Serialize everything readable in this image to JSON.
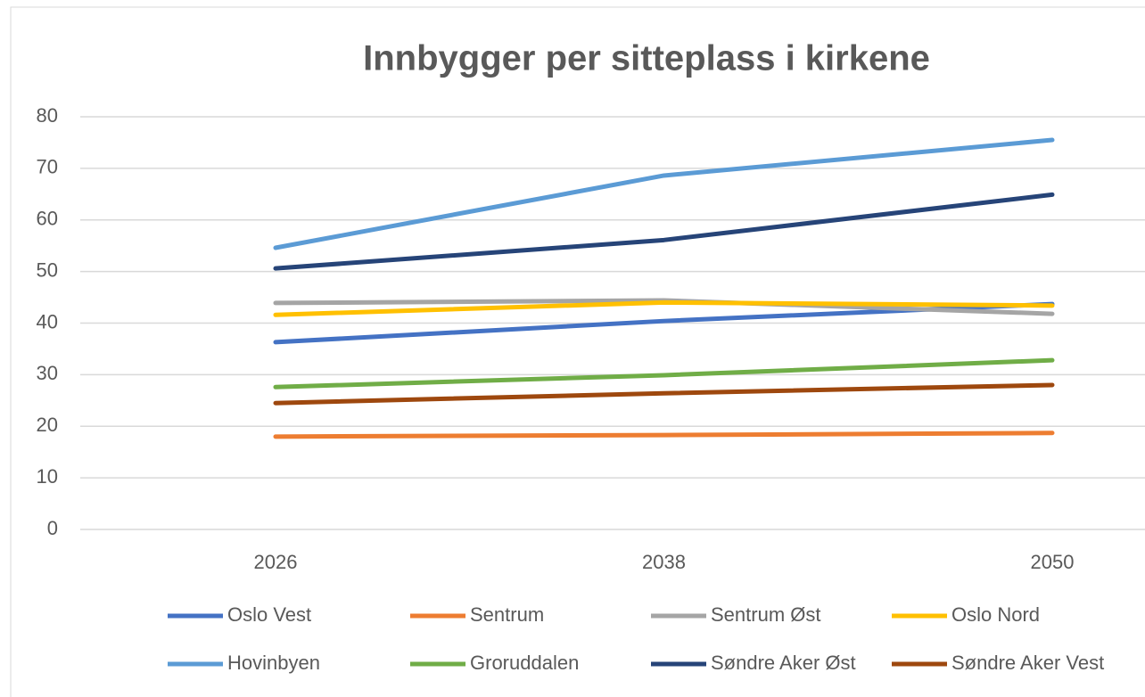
{
  "chart_data": {
    "type": "line",
    "title": "Innbygger per sitteplass i kirkene",
    "categories": [
      "2026",
      "2038",
      "2050"
    ],
    "series": [
      {
        "name": "Oslo Vest",
        "color": "#4472c4",
        "values": [
          36.3,
          40.4,
          43.7
        ]
      },
      {
        "name": "Sentrum",
        "color": "#ed7d31",
        "values": [
          18.0,
          18.3,
          18.7
        ]
      },
      {
        "name": "Sentrum Øst",
        "color": "#a5a5a5",
        "values": [
          43.9,
          44.4,
          41.8
        ]
      },
      {
        "name": "Oslo Nord",
        "color": "#ffc000",
        "values": [
          41.6,
          44.0,
          43.4
        ]
      },
      {
        "name": "Hovinbyen",
        "color": "#5b9bd5",
        "values": [
          54.6,
          68.6,
          75.5
        ]
      },
      {
        "name": "Groruddalen",
        "color": "#70ad47",
        "values": [
          27.6,
          29.9,
          32.8
        ]
      },
      {
        "name": "Søndre Aker Øst",
        "color": "#264478",
        "values": [
          50.6,
          56.1,
          64.9
        ]
      },
      {
        "name": "Søndre Aker Vest",
        "color": "#9e480e",
        "values": [
          24.5,
          26.4,
          28.0
        ]
      }
    ],
    "ylim": [
      0,
      80
    ],
    "yticks": [
      0,
      10,
      20,
      30,
      40,
      50,
      60,
      70,
      80
    ],
    "grid": true,
    "legend": "bottom"
  }
}
